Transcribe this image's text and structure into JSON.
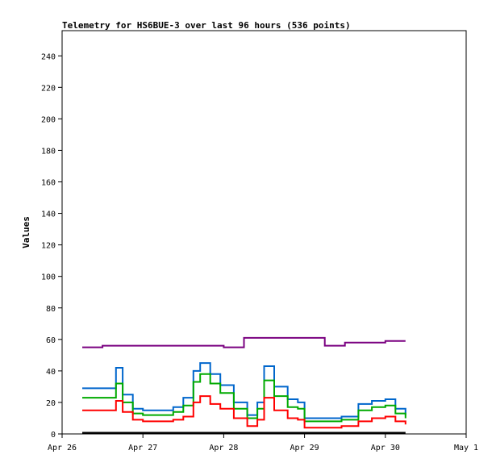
{
  "chart_data": {
    "type": "line",
    "title": "Telemetry for HS6BUE-3 over last 96 hours (536 points)",
    "xlabel": "",
    "ylabel": "Values",
    "ylim": [
      0,
      256
    ],
    "xlim": [
      "2024-04-26 00:00",
      "2024-05-01 00:00"
    ],
    "y_ticks": [
      0,
      20,
      40,
      60,
      80,
      100,
      120,
      140,
      160,
      180,
      200,
      220,
      240
    ],
    "x_ticks": [
      {
        "label": "Apr 26",
        "time": "2024-04-26 00:00"
      },
      {
        "label": "Apr 27",
        "time": "2024-04-27 00:00"
      },
      {
        "label": "Apr 28",
        "time": "2024-04-28 00:00"
      },
      {
        "label": "Apr 29",
        "time": "2024-04-29 00:00"
      },
      {
        "label": "Apr 30",
        "time": "2024-04-30 00:00"
      },
      {
        "label": "May 1",
        "time": "2024-05-01 00:00"
      }
    ],
    "grid": false,
    "legend": "none",
    "colors": {
      "purple": "#7a0080",
      "blue": "#0066cc",
      "green": "#00aa00",
      "red": "#ff0000",
      "black": "#000000"
    },
    "series": [
      {
        "color": "#7a0080",
        "x": [
          "2024-04-26 06:00",
          "2024-04-26 12:00",
          "2024-04-26 18:00",
          "2024-04-27 00:00",
          "2024-04-27 06:00",
          "2024-04-27 12:00",
          "2024-04-27 18:00",
          "2024-04-28 00:00",
          "2024-04-28 06:00",
          "2024-04-28 12:00",
          "2024-04-28 18:00",
          "2024-04-29 00:00",
          "2024-04-29 06:00",
          "2024-04-29 12:00",
          "2024-04-29 18:00",
          "2024-04-30 00:00",
          "2024-04-30 06:00"
        ],
        "y": [
          55,
          56,
          56,
          56,
          56,
          56,
          56,
          55,
          61,
          61,
          61,
          61,
          56,
          58,
          58,
          59,
          59
        ]
      },
      {
        "color": "#0066cc",
        "x": [
          "2024-04-26 06:00",
          "2024-04-26 12:00",
          "2024-04-26 15:00",
          "2024-04-26 16:00",
          "2024-04-26 18:00",
          "2024-04-26 21:00",
          "2024-04-27 00:00",
          "2024-04-27 06:00",
          "2024-04-27 09:00",
          "2024-04-27 12:00",
          "2024-04-27 15:00",
          "2024-04-27 17:00",
          "2024-04-27 20:00",
          "2024-04-27 23:00",
          "2024-04-28 03:00",
          "2024-04-28 07:00",
          "2024-04-28 10:00",
          "2024-04-28 12:00",
          "2024-04-28 15:00",
          "2024-04-28 19:00",
          "2024-04-28 22:00",
          "2024-04-29 00:00",
          "2024-04-29 06:00",
          "2024-04-29 11:00",
          "2024-04-29 16:00",
          "2024-04-29 20:00",
          "2024-04-30 00:00",
          "2024-04-30 03:00",
          "2024-04-30 06:00"
        ],
        "y": [
          29,
          29,
          29,
          42,
          25,
          16,
          15,
          15,
          17,
          23,
          40,
          45,
          38,
          31,
          20,
          12,
          20,
          43,
          30,
          22,
          20,
          10,
          10,
          11,
          19,
          21,
          22,
          16,
          12
        ]
      },
      {
        "color": "#00aa00",
        "x": [
          "2024-04-26 06:00",
          "2024-04-26 12:00",
          "2024-04-26 15:00",
          "2024-04-26 16:00",
          "2024-04-26 18:00",
          "2024-04-26 21:00",
          "2024-04-27 00:00",
          "2024-04-27 06:00",
          "2024-04-27 09:00",
          "2024-04-27 12:00",
          "2024-04-27 15:00",
          "2024-04-27 17:00",
          "2024-04-27 20:00",
          "2024-04-27 23:00",
          "2024-04-28 03:00",
          "2024-04-28 07:00",
          "2024-04-28 10:00",
          "2024-04-28 12:00",
          "2024-04-28 15:00",
          "2024-04-28 19:00",
          "2024-04-28 22:00",
          "2024-04-29 00:00",
          "2024-04-29 06:00",
          "2024-04-29 11:00",
          "2024-04-29 16:00",
          "2024-04-29 20:00",
          "2024-04-30 00:00",
          "2024-04-30 03:00",
          "2024-04-30 06:00"
        ],
        "y": [
          23,
          23,
          23,
          32,
          20,
          13,
          12,
          12,
          14,
          18,
          33,
          38,
          32,
          26,
          16,
          10,
          16,
          34,
          24,
          17,
          16,
          8,
          8,
          9,
          15,
          17,
          18,
          13,
          10
        ]
      },
      {
        "color": "#ff0000",
        "x": [
          "2024-04-26 06:00",
          "2024-04-26 12:00",
          "2024-04-26 15:00",
          "2024-04-26 16:00",
          "2024-04-26 18:00",
          "2024-04-26 21:00",
          "2024-04-27 00:00",
          "2024-04-27 06:00",
          "2024-04-27 09:00",
          "2024-04-27 12:00",
          "2024-04-27 15:00",
          "2024-04-27 17:00",
          "2024-04-27 20:00",
          "2024-04-27 23:00",
          "2024-04-28 03:00",
          "2024-04-28 07:00",
          "2024-04-28 10:00",
          "2024-04-28 12:00",
          "2024-04-28 15:00",
          "2024-04-28 19:00",
          "2024-04-28 22:00",
          "2024-04-29 00:00",
          "2024-04-29 06:00",
          "2024-04-29 11:00",
          "2024-04-29 16:00",
          "2024-04-29 20:00",
          "2024-04-30 00:00",
          "2024-04-30 03:00",
          "2024-04-30 06:00"
        ],
        "y": [
          15,
          15,
          15,
          21,
          14,
          9,
          8,
          8,
          9,
          11,
          20,
          24,
          19,
          16,
          10,
          5,
          9,
          23,
          15,
          10,
          9,
          4,
          4,
          5,
          8,
          10,
          11,
          8,
          6
        ]
      },
      {
        "color": "#000000",
        "x": [
          "2024-04-26 06:00",
          "2024-04-30 06:00"
        ],
        "y": [
          0.5,
          0.5
        ]
      }
    ]
  }
}
